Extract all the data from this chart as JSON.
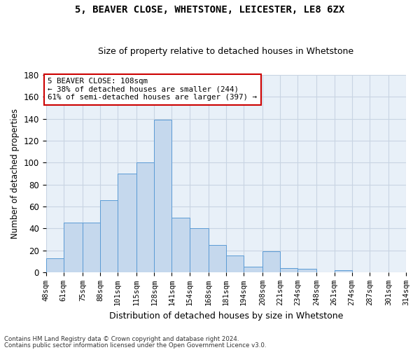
{
  "title1": "5, BEAVER CLOSE, WHETSTONE, LEICESTER, LE8 6ZX",
  "title2": "Size of property relative to detached houses in Whetstone",
  "xlabel": "Distribution of detached houses by size in Whetstone",
  "ylabel": "Number of detached properties",
  "categories": [
    "48sqm",
    "61sqm",
    "75sqm",
    "88sqm",
    "101sqm",
    "115sqm",
    "128sqm",
    "141sqm",
    "154sqm",
    "168sqm",
    "181sqm",
    "194sqm",
    "208sqm",
    "221sqm",
    "234sqm",
    "248sqm",
    "261sqm",
    "274sqm",
    "287sqm",
    "301sqm",
    "314sqm"
  ],
  "bar_heights": [
    13,
    45,
    45,
    66,
    66,
    90,
    100,
    139,
    50,
    50,
    40,
    40,
    25,
    25,
    15,
    15,
    5,
    5,
    19,
    19,
    4,
    4,
    3,
    3,
    0,
    0,
    2,
    0,
    0,
    0,
    0,
    0,
    0,
    0,
    0,
    0,
    0,
    0,
    0,
    0,
    2
  ],
  "bin_edges": [
    48,
    61,
    75,
    88,
    101,
    115,
    128,
    141,
    154,
    168,
    181,
    194,
    208,
    221,
    234,
    248,
    261,
    274,
    287,
    301,
    314
  ],
  "bar_heights_per_bin": [
    13,
    45,
    45,
    66,
    90,
    100,
    139,
    50,
    40,
    25,
    15,
    5,
    19,
    4,
    3,
    0,
    2,
    0,
    0,
    0
  ],
  "bar_color": "#c5d8ed",
  "bar_edge_color": "#5b9bd5",
  "annotation_text": "5 BEAVER CLOSE: 108sqm\n← 38% of detached houses are smaller (244)\n61% of semi-detached houses are larger (397) →",
  "annotation_box_color": "#ffffff",
  "annotation_box_edge": "#cc0000",
  "footer1": "Contains HM Land Registry data © Crown copyright and database right 2024.",
  "footer2": "Contains public sector information licensed under the Open Government Licence v3.0.",
  "ylim": [
    0,
    180
  ],
  "yticks": [
    0,
    20,
    40,
    60,
    80,
    100,
    120,
    140,
    160,
    180
  ],
  "background_color": "#ffffff",
  "plot_bg_color": "#e8f0f8",
  "grid_color": "#c8d4e3"
}
